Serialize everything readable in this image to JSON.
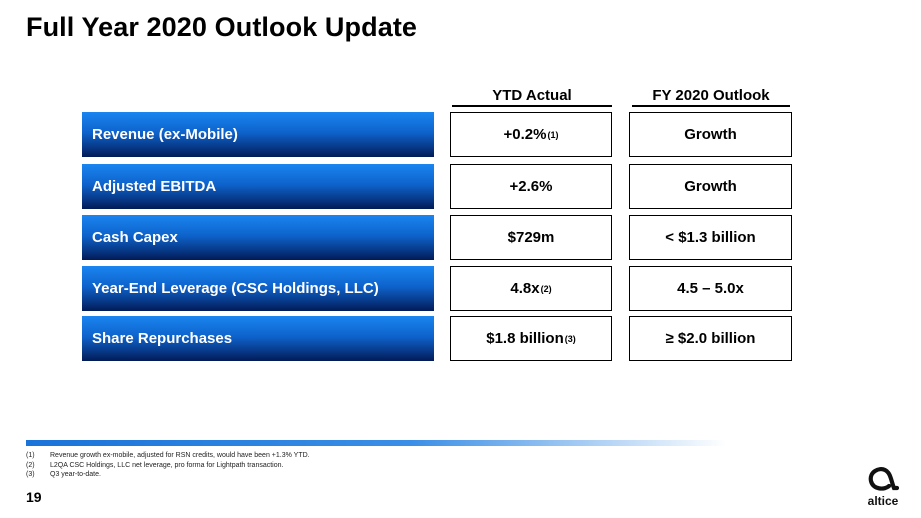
{
  "title": "Full Year 2020 Outlook Update",
  "columns": {
    "ytd": "YTD Actual",
    "fy": "FY 2020 Outlook"
  },
  "rows": [
    {
      "metric": "Revenue (ex-Mobile)",
      "ytd": "+0.2%",
      "ytd_note": "(1)",
      "fy": "Growth"
    },
    {
      "metric": "Adjusted EBITDA",
      "ytd": "+2.6%",
      "ytd_note": "",
      "fy": "Growth"
    },
    {
      "metric": "Cash Capex",
      "ytd": "$729m",
      "ytd_note": "",
      "fy": "< $1.3 billion"
    },
    {
      "metric": "Year-End Leverage (CSC Holdings, LLC)",
      "ytd": "4.8x",
      "ytd_note": "(2)",
      "fy": "4.5 – 5.0x"
    },
    {
      "metric": "Share Repurchases",
      "ytd": "$1.8 billion",
      "ytd_note": "(3)",
      "fy": "≥ $2.0 billion"
    }
  ],
  "footnotes": [
    {
      "num": "(1)",
      "text": "Revenue growth ex-mobile, adjusted for RSN credits, would have been +1.3% YTD."
    },
    {
      "num": "(2)",
      "text": "L2QA CSC Holdings, LLC net leverage, pro forma for Lightpath transaction."
    },
    {
      "num": "(3)",
      "text": "Q3 year-to-date."
    }
  ],
  "page_number": "19",
  "logo": {
    "text": "altice",
    "icon": "altice-logo-icon"
  }
}
